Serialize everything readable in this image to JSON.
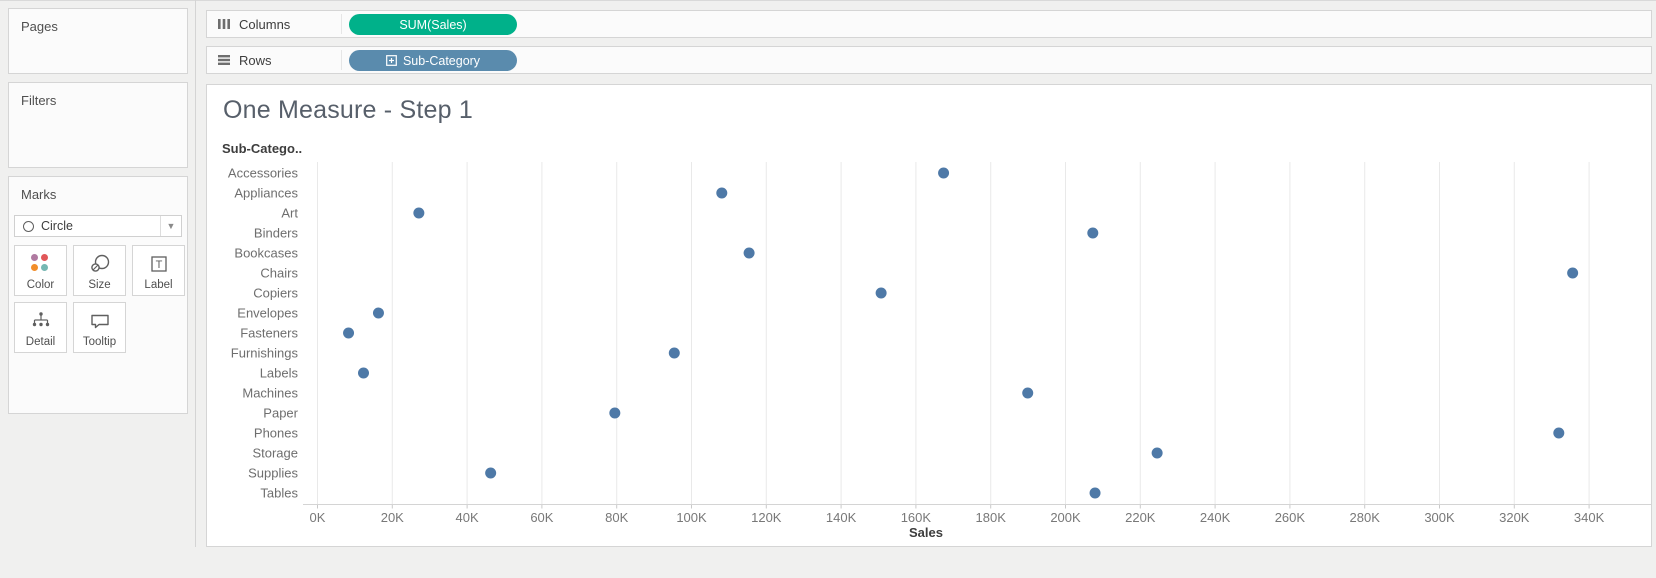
{
  "sidebar": {
    "pages_label": "Pages",
    "filters_label": "Filters",
    "marks": {
      "label": "Marks",
      "mark_type": "Circle",
      "buttons": [
        {
          "label": "Color"
        },
        {
          "label": "Size"
        },
        {
          "label": "Label"
        },
        {
          "label": "Detail"
        },
        {
          "label": "Tooltip"
        }
      ]
    }
  },
  "shelves": {
    "columns_label": "Columns",
    "columns_pill": "SUM(Sales)",
    "rows_label": "Rows",
    "rows_pill": "Sub-Category"
  },
  "sheet": {
    "title": "One Measure - Step 1",
    "row_header": "Sub-Catego.."
  },
  "chart_data": {
    "type": "scatter",
    "title": "One Measure - Step 1",
    "row_field": "Sub-Category",
    "categories": [
      "Accessories",
      "Appliances",
      "Art",
      "Binders",
      "Bookcases",
      "Chairs",
      "Copiers",
      "Envelopes",
      "Fasteners",
      "Furnishings",
      "Labels",
      "Machines",
      "Paper",
      "Phones",
      "Storage",
      "Supplies",
      "Tables"
    ],
    "series": [
      {
        "name": "SUM(Sales)",
        "values_k": [
          167.4,
          108.1,
          27.1,
          207.3,
          115.4,
          335.6,
          150.7,
          16.3,
          8.3,
          95.4,
          12.3,
          189.9,
          79.5,
          331.9,
          224.5,
          46.3,
          207.9
        ]
      }
    ],
    "units": "thousands of dollars (K)",
    "xlabel": "Sales",
    "x_ticks": [
      "0K",
      "20K",
      "40K",
      "60K",
      "80K",
      "100K",
      "120K",
      "140K",
      "160K",
      "180K",
      "200K",
      "220K",
      "240K",
      "260K",
      "280K",
      "300K",
      "320K",
      "340K"
    ],
    "xlim_k": [
      0,
      357
    ],
    "tick_step_k": 20,
    "grid": "vertical gridlines only",
    "legend": "none"
  },
  "colors": {
    "pill_green": "#00b18a",
    "pill_blue": "#5a8bad",
    "dot_blue": "#4e79a7",
    "gridline": "#e9e9e9",
    "axis_line": "#d4d4d4",
    "color_icon_dots": [
      "#b07aa1",
      "#e15759",
      "#f28e2b",
      "#76b7b2"
    ]
  }
}
